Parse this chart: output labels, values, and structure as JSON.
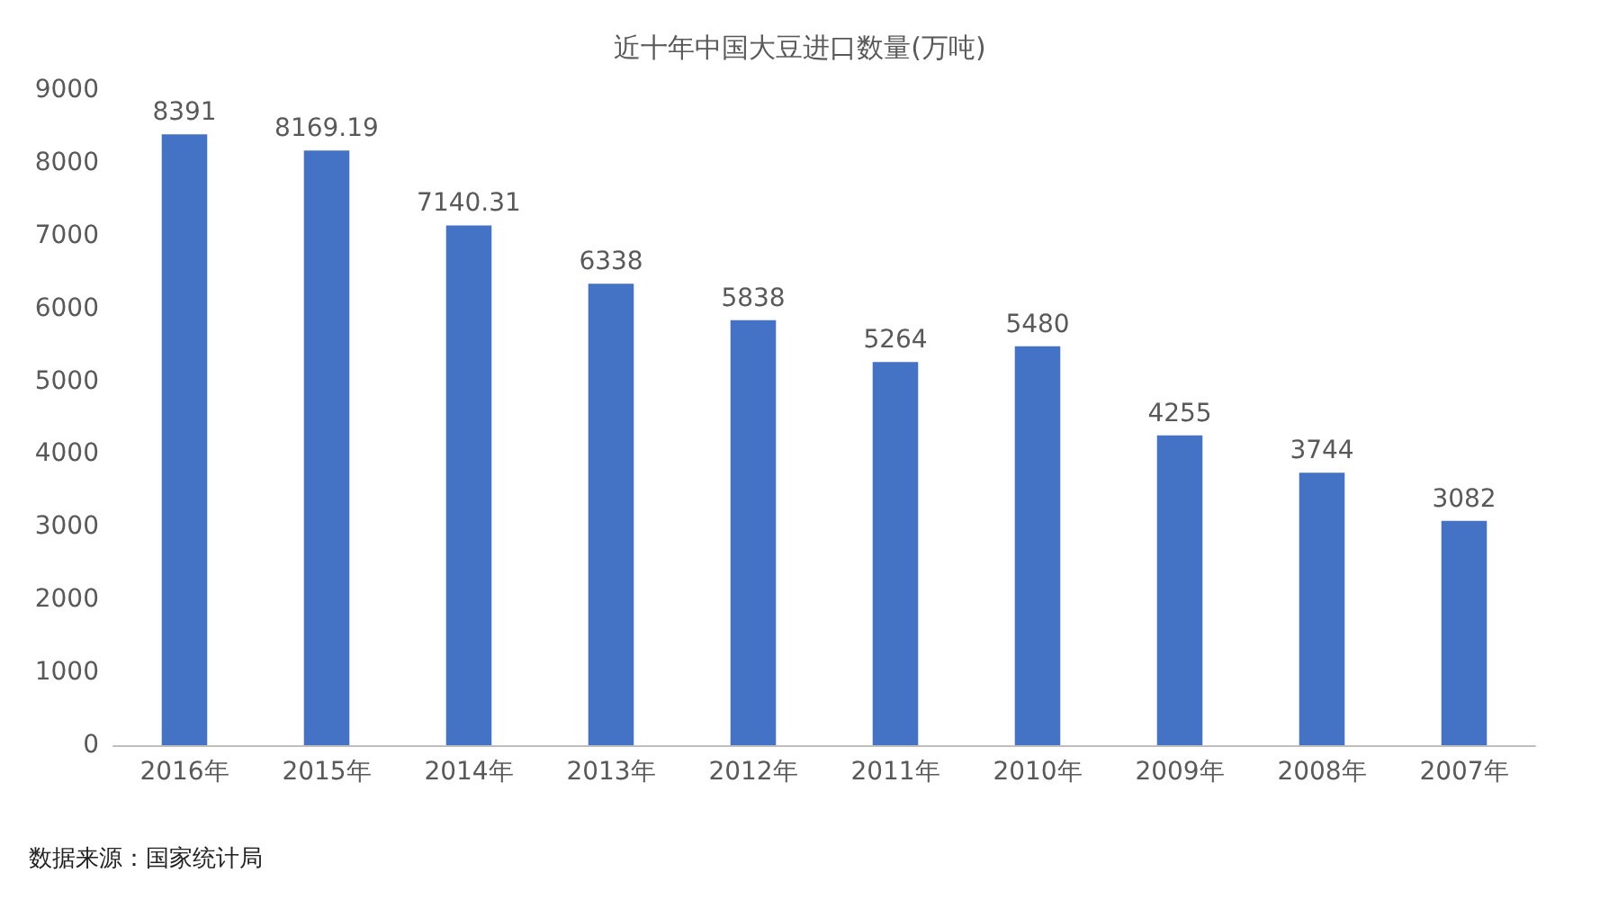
{
  "chart_data": {
    "type": "bar",
    "title": "近十年中国大豆进口数量(万吨)",
    "categories": [
      "2016年",
      "2015年",
      "2014年",
      "2013年",
      "2012年",
      "2011年",
      "2010年",
      "2009年",
      "2008年",
      "2007年"
    ],
    "values": [
      8391,
      8169.19,
      7140.31,
      6338,
      5838,
      5264,
      5480,
      4255,
      3744,
      3082
    ],
    "color": "#4472c4",
    "ylim": [
      0,
      9000
    ],
    "yticks": [
      0,
      1000,
      2000,
      3000,
      4000,
      5000,
      6000,
      7000,
      8000,
      9000
    ],
    "data_labels": true,
    "grid": false,
    "annotations": [
      "数据来源：国家统计局"
    ]
  }
}
